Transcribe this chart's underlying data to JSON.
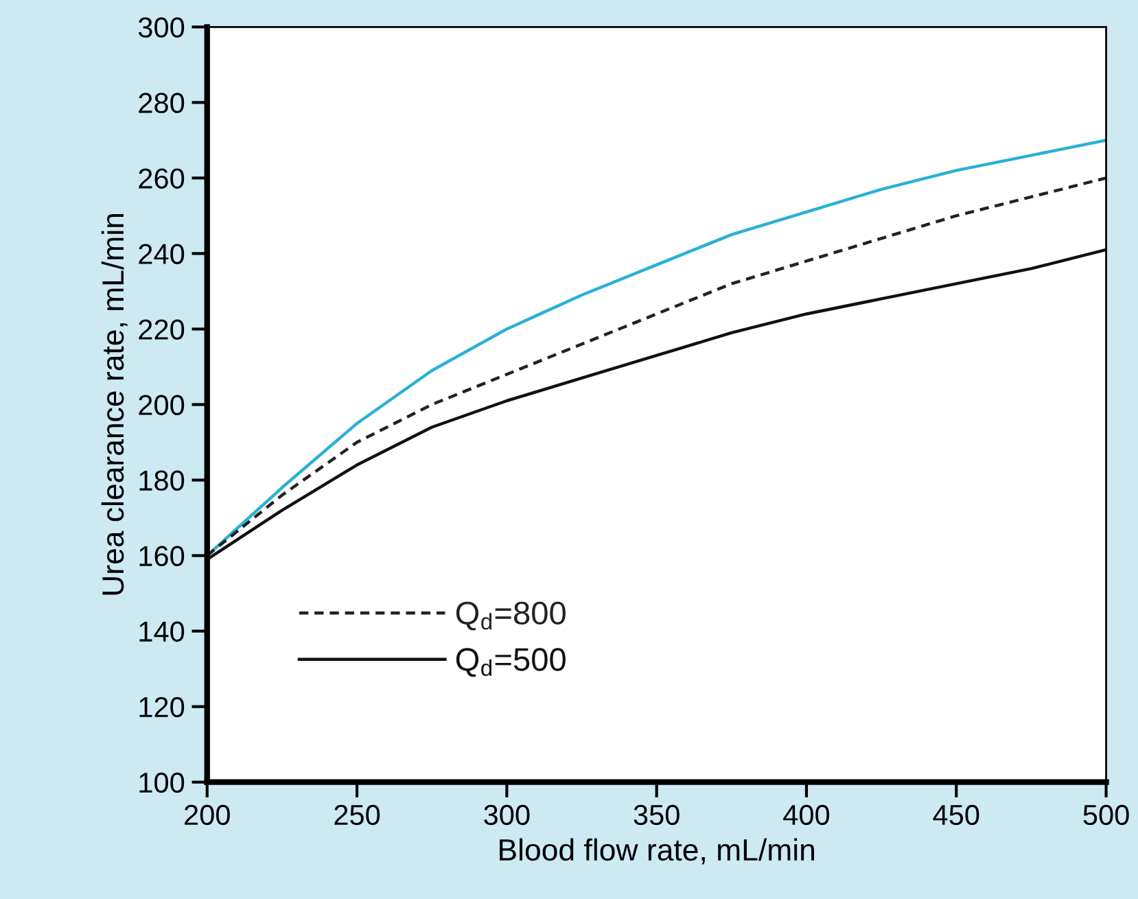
{
  "chart_data": {
    "type": "line",
    "xlabel": "Blood flow rate, mL/min",
    "ylabel": "Urea clearance rate, mL/min",
    "xlim": [
      200,
      500
    ],
    "xticks": [
      200,
      250,
      300,
      350,
      400,
      450,
      500
    ],
    "ylim": [
      100,
      300
    ],
    "yticks": [
      100,
      120,
      140,
      160,
      180,
      200,
      220,
      240,
      260,
      280,
      300
    ],
    "grid": false,
    "legend": "bottom left",
    "series": [
      {
        "color": "#29b0d6",
        "line_style": "solid",
        "x": [
          200,
          225,
          250,
          275,
          300,
          325,
          350,
          375,
          400,
          425,
          450,
          475,
          500
        ],
        "values": [
          160,
          178,
          195,
          209,
          220,
          229,
          237,
          245,
          251,
          257,
          262,
          266,
          270
        ]
      },
      {
        "name": "Q$_{d}$=800",
        "color": "#222222",
        "line_style": "dashed",
        "x": [
          200,
          225,
          250,
          275,
          300,
          325,
          350,
          375,
          400,
          425,
          450,
          475,
          500
        ],
        "values": [
          160,
          176,
          190,
          200,
          208,
          216,
          224,
          232,
          238,
          244,
          250,
          255,
          260
        ]
      },
      {
        "name": "Q$_{d}$=500",
        "color": "#111111",
        "line_style": "solid",
        "x": [
          200,
          225,
          250,
          275,
          300,
          325,
          350,
          375,
          400,
          425,
          450,
          475,
          500
        ],
        "values": [
          159,
          172,
          184,
          194,
          201,
          207,
          213,
          219,
          224,
          228,
          232,
          236,
          241
        ]
      }
    ]
  }
}
